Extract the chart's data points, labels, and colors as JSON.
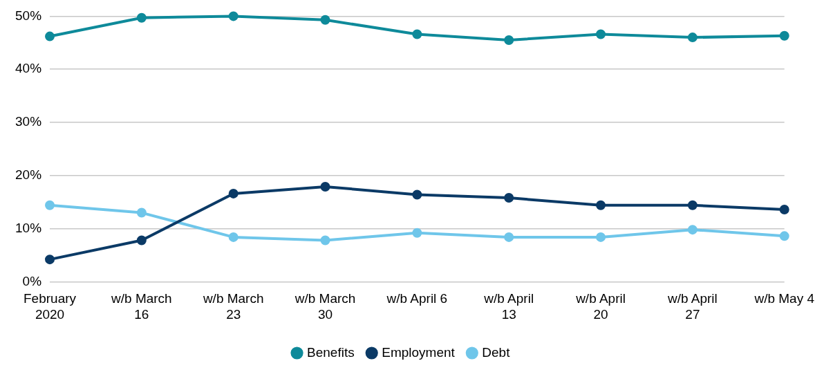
{
  "chart_data": {
    "type": "line",
    "categories": [
      "February 2020",
      "w/b March 16",
      "w/b March 23",
      "w/b March 30",
      "w/b April 6",
      "w/b April 13",
      "w/b April 20",
      "w/b April 27",
      "w/b May 4"
    ],
    "series": [
      {
        "name": "Benefits",
        "color": "#0e8a9a",
        "values": [
          46.2,
          49.7,
          50.0,
          49.3,
          46.6,
          45.5,
          46.6,
          46.0,
          46.3
        ]
      },
      {
        "name": "Employment",
        "color": "#0b3a66",
        "values": [
          4.2,
          7.8,
          16.6,
          17.9,
          16.4,
          15.8,
          14.4,
          14.4,
          13.6
        ]
      },
      {
        "name": "Debt",
        "color": "#6fc6ea",
        "values": [
          14.4,
          13.0,
          8.4,
          7.8,
          9.2,
          8.4,
          8.4,
          9.8,
          8.6
        ]
      }
    ],
    "ylim": [
      0,
      50
    ],
    "yticks": [
      {
        "value": 0,
        "label": "0%"
      },
      {
        "value": 10,
        "label": "10%"
      },
      {
        "value": 20,
        "label": "20%"
      },
      {
        "value": 30,
        "label": "30%"
      },
      {
        "value": 40,
        "label": "40%"
      },
      {
        "value": 50,
        "label": "50%"
      }
    ],
    "grid": "y",
    "legend": "bottom",
    "marker": "circle",
    "line_style": "solid"
  }
}
